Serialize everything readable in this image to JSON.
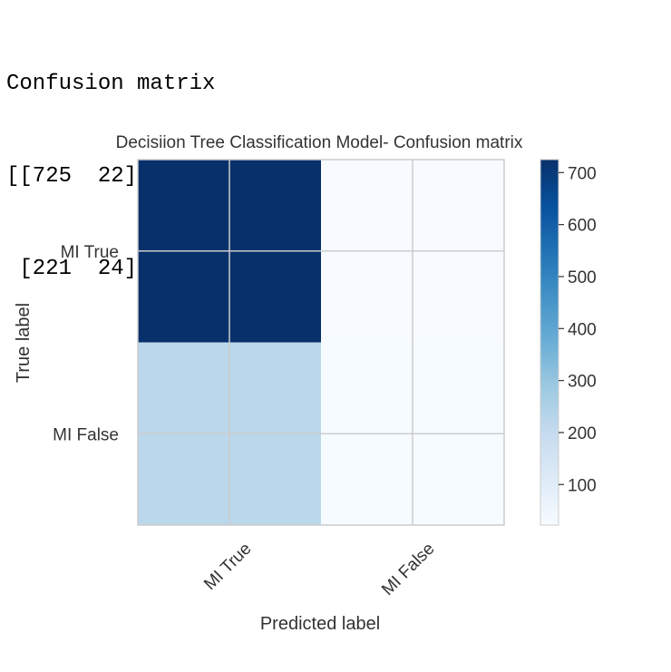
{
  "printout": {
    "heading": "Confusion matrix",
    "rows": [
      "[[725  22]",
      " [221  24]]"
    ]
  },
  "chart_data": {
    "type": "heatmap",
    "title": "Decisiion Tree Classification Model- Confusion matrix",
    "xlabel": "Predicted label",
    "ylabel": "True label",
    "x_categories": [
      "MI True",
      "MI False"
    ],
    "y_categories": [
      "MI True",
      "MI False"
    ],
    "matrix": [
      [
        725,
        22
      ],
      [
        221,
        24
      ]
    ],
    "colormap": "Blues",
    "grid": true,
    "colorbar": {
      "range": [
        22,
        725
      ],
      "ticks": [
        100,
        200,
        300,
        400,
        500,
        600,
        700
      ]
    },
    "colors": {
      "low": "#f7fbff",
      "mid": "#c6dbef",
      "high": "#08306b"
    }
  }
}
